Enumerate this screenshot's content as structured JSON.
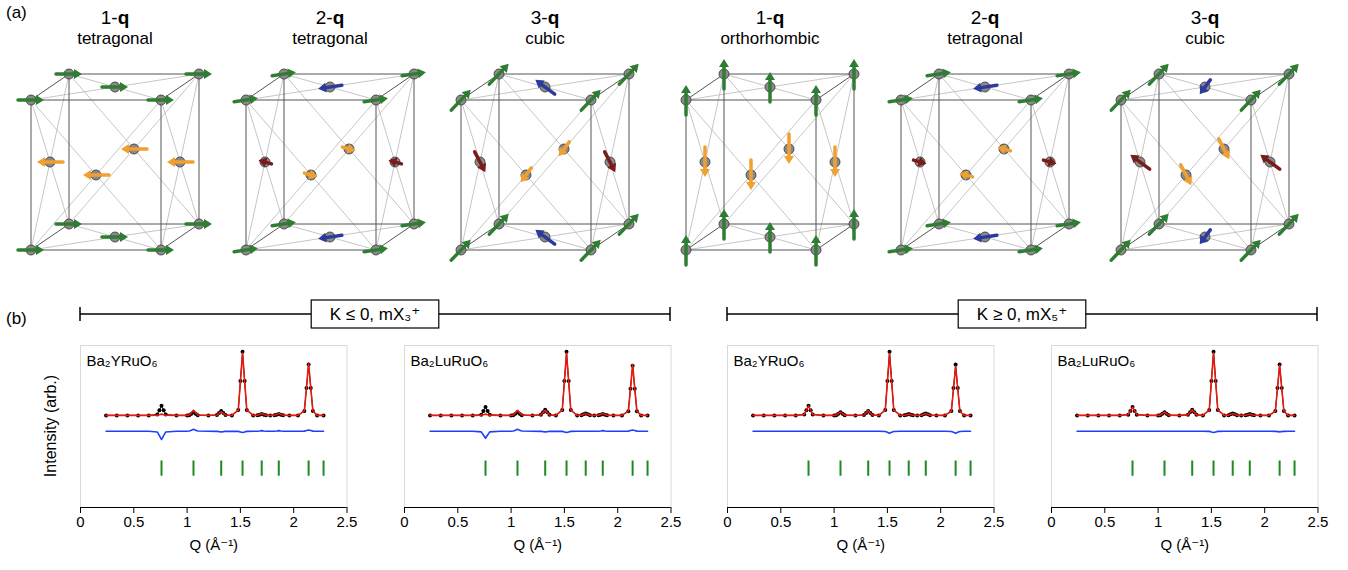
{
  "panel_labels": [
    "(a)",
    "(b)"
  ],
  "structures": [
    {
      "title": "1-q",
      "subtitle": "tetragonal"
    },
    {
      "title": "2-q",
      "subtitle": "tetragonal"
    },
    {
      "title": "3-q",
      "subtitle": "cubic"
    },
    {
      "title": "1-q",
      "subtitle": "orthorhombic"
    },
    {
      "title": "2-q",
      "subtitle": "tetragonal"
    },
    {
      "title": "3-q",
      "subtitle": "cubic"
    }
  ],
  "groups": [
    "K ≤ 0, mX₃⁺",
    "K ≥ 0, mX₅⁺"
  ],
  "chart_data": [
    {
      "type": "line",
      "title": "Ba₂YRuO₆",
      "xlabel": "Q (Å⁻¹)",
      "ylabel": "Intensity (arb.)",
      "xlim": [
        0,
        2.5
      ],
      "xticks": [
        0,
        0.5,
        1,
        1.5,
        2,
        2.5
      ],
      "ylim": [
        -1.45,
        1.1
      ],
      "tick_labels": "x",
      "x": [
        0.24,
        0.34,
        0.44,
        0.54,
        0.64,
        0.72,
        0.74,
        0.76,
        0.78,
        0.8,
        0.9,
        1,
        1.02,
        1.04,
        1.06,
        1.08,
        1.1,
        1.2,
        1.28,
        1.3,
        1.32,
        1.34,
        1.36,
        1.42,
        1.48,
        1.5,
        1.52,
        1.54,
        1.56,
        1.62,
        1.66,
        1.68,
        1.7,
        1.72,
        1.74,
        1.78,
        1.82,
        1.84,
        1.86,
        1.88,
        1.9,
        1.96,
        2.04,
        2.1,
        2.12,
        2.14,
        2.16,
        2.18,
        2.22,
        2.28
      ],
      "series": [
        {
          "type": "line",
          "marker": "circle",
          "color": "#000000",
          "values": [
            0,
            0,
            0,
            0,
            0,
            0.013,
            0.081,
            0.15,
            0.081,
            0.013,
            0,
            0,
            0.004,
            0.027,
            0.05,
            0.027,
            0.004,
            0,
            0.006,
            0.038,
            0.07,
            0.038,
            0.006,
            0,
            0.085,
            0.54,
            1,
            0.54,
            0.085,
            0,
            0.002,
            0.011,
            0.02,
            0.011,
            0.002,
            0,
            0.002,
            0.011,
            0.02,
            0.011,
            0.002,
            0,
            0,
            0.068,
            0.432,
            0.8,
            0.432,
            0.068,
            0,
            0
          ]
        },
        {
          "type": "line",
          "color": "#e8190f",
          "values": [
            0,
            0,
            0,
            0,
            0,
            0.002,
            0.011,
            0.02,
            0.011,
            0.002,
            0,
            0,
            0.007,
            0.043,
            0.08,
            0.043,
            0.007,
            0,
            0.005,
            0.032,
            0.06,
            0.032,
            0.005,
            0,
            0.083,
            0.529,
            0.98,
            0.529,
            0.083,
            0,
            0.003,
            0.016,
            0.03,
            0.016,
            0.003,
            0,
            0.003,
            0.016,
            0.03,
            0.016,
            0.003,
            0,
            0,
            0.07,
            0.443,
            0.82,
            0.443,
            0.07,
            0,
            0
          ]
        },
        {
          "type": "line",
          "color": "#1f3fff",
          "values": [
            -0.25,
            -0.25,
            -0.25,
            -0.25,
            -0.25,
            -0.261,
            -0.32,
            -0.38,
            -0.32,
            -0.261,
            -0.25,
            -0.25,
            -0.247,
            -0.234,
            -0.22,
            -0.234,
            -0.247,
            -0.25,
            -0.251,
            -0.256,
            -0.26,
            -0.256,
            -0.251,
            -0.25,
            -0.252,
            -0.261,
            -0.27,
            -0.261,
            -0.252,
            -0.25,
            -0.249,
            -0.245,
            -0.24,
            -0.245,
            -0.249,
            -0.25,
            -0.249,
            -0.245,
            -0.24,
            -0.245,
            -0.249,
            -0.25,
            -0.25,
            -0.248,
            -0.239,
            -0.23,
            -0.239,
            -0.248,
            -0.25,
            -0.25
          ]
        }
      ],
      "reflections": {
        "color": "#1f8a1f",
        "x": [
          0.76,
          1.06,
          1.32,
          1.52,
          1.7,
          1.86,
          2.14,
          2.28
        ]
      }
    },
    {
      "type": "line",
      "title": "Ba₂LuRuO₆",
      "xlabel": "Q (Å⁻¹)",
      "xlim": [
        0,
        2.5
      ],
      "xticks": [
        0,
        0.5,
        1,
        1.5,
        2,
        2.5
      ],
      "ylim": [
        -1.45,
        1.1
      ],
      "tick_labels": "x",
      "x": [
        0.24,
        0.34,
        0.44,
        0.54,
        0.64,
        0.72,
        0.74,
        0.76,
        0.78,
        0.8,
        0.9,
        1,
        1.02,
        1.04,
        1.06,
        1.08,
        1.1,
        1.2,
        1.28,
        1.3,
        1.32,
        1.34,
        1.36,
        1.42,
        1.48,
        1.5,
        1.52,
        1.54,
        1.56,
        1.62,
        1.66,
        1.68,
        1.7,
        1.72,
        1.74,
        1.78,
        1.82,
        1.84,
        1.86,
        1.88,
        1.9,
        1.96,
        2.04,
        2.1,
        2.12,
        2.14,
        2.16,
        2.18,
        2.22,
        2.28
      ],
      "series": [
        {
          "type": "line",
          "marker": "circle",
          "color": "#000000",
          "values": [
            0,
            0,
            0,
            0,
            0,
            0.011,
            0.07,
            0.13,
            0.07,
            0.011,
            0,
            0,
            0.004,
            0.027,
            0.05,
            0.027,
            0.004,
            0,
            0.008,
            0.049,
            0.09,
            0.049,
            0.008,
            0,
            0.085,
            0.54,
            1,
            0.54,
            0.085,
            0,
            0.003,
            0.016,
            0.03,
            0.016,
            0.003,
            0,
            0.002,
            0.011,
            0.02,
            0.011,
            0.002,
            0,
            0,
            0.066,
            0.421,
            0.78,
            0.421,
            0.066,
            0,
            0
          ]
        },
        {
          "type": "line",
          "color": "#e8190f",
          "values": [
            0,
            0,
            0,
            0,
            0,
            0.002,
            0.011,
            0.02,
            0.011,
            0.002,
            0,
            0,
            0.007,
            0.043,
            0.08,
            0.043,
            0.007,
            0,
            0.007,
            0.043,
            0.08,
            0.043,
            0.007,
            0,
            0.083,
            0.529,
            0.98,
            0.529,
            0.083,
            0,
            0.003,
            0.016,
            0.03,
            0.016,
            0.003,
            0,
            0.003,
            0.016,
            0.03,
            0.016,
            0.003,
            0,
            0,
            0.068,
            0.432,
            0.8,
            0.432,
            0.068,
            0,
            0
          ]
        },
        {
          "type": "line",
          "color": "#1f3fff",
          "values": [
            -0.25,
            -0.25,
            -0.25,
            -0.25,
            -0.25,
            -0.259,
            -0.309,
            -0.36,
            -0.309,
            -0.259,
            -0.25,
            -0.25,
            -0.247,
            -0.234,
            -0.22,
            -0.234,
            -0.247,
            -0.25,
            -0.251,
            -0.256,
            -0.26,
            -0.256,
            -0.251,
            -0.25,
            -0.252,
            -0.261,
            -0.27,
            -0.261,
            -0.252,
            -0.25,
            -0.25,
            -0.25,
            -0.25,
            -0.25,
            -0.25,
            -0.25,
            -0.249,
            -0.245,
            -0.24,
            -0.245,
            -0.249,
            -0.25,
            -0.25,
            -0.248,
            -0.239,
            -0.23,
            -0.239,
            -0.248,
            -0.25,
            -0.25
          ]
        }
      ],
      "reflections": {
        "color": "#1f8a1f",
        "x": [
          0.76,
          1.06,
          1.32,
          1.52,
          1.7,
          1.86,
          2.14,
          2.28
        ]
      }
    },
    {
      "type": "line",
      "title": "Ba₂YRuO₆",
      "xlabel": "Q (Å⁻¹)",
      "xlim": [
        0,
        2.5
      ],
      "xticks": [
        0,
        0.5,
        1,
        1.5,
        2,
        2.5
      ],
      "ylim": [
        -1.45,
        1.1
      ],
      "tick_labels": "x",
      "x": [
        0.24,
        0.34,
        0.44,
        0.54,
        0.64,
        0.72,
        0.74,
        0.76,
        0.78,
        0.8,
        0.9,
        1,
        1.02,
        1.04,
        1.06,
        1.08,
        1.1,
        1.2,
        1.28,
        1.3,
        1.32,
        1.34,
        1.36,
        1.42,
        1.48,
        1.5,
        1.52,
        1.54,
        1.56,
        1.62,
        1.66,
        1.68,
        1.7,
        1.72,
        1.74,
        1.78,
        1.82,
        1.84,
        1.86,
        1.88,
        1.9,
        1.96,
        2.04,
        2.1,
        2.12,
        2.14,
        2.16,
        2.18,
        2.22,
        2.28
      ],
      "series": [
        {
          "type": "line",
          "marker": "circle",
          "color": "#000000",
          "values": [
            0,
            0,
            0,
            0,
            0,
            0.013,
            0.081,
            0.15,
            0.081,
            0.013,
            0,
            0,
            0.004,
            0.027,
            0.05,
            0.027,
            0.004,
            0,
            0.006,
            0.038,
            0.07,
            0.038,
            0.006,
            0,
            0.085,
            0.54,
            1,
            0.54,
            0.085,
            0,
            0.002,
            0.011,
            0.02,
            0.011,
            0.002,
            0,
            0.003,
            0.016,
            0.03,
            0.016,
            0.003,
            0,
            0,
            0.068,
            0.432,
            0.8,
            0.432,
            0.068,
            0,
            0
          ]
        },
        {
          "type": "line",
          "color": "#e8190f",
          "values": [
            0,
            0,
            0,
            0,
            0,
            0.013,
            0.081,
            0.15,
            0.081,
            0.013,
            0,
            0,
            0.004,
            0.027,
            0.05,
            0.027,
            0.004,
            0,
            0.006,
            0.038,
            0.07,
            0.038,
            0.006,
            0,
            0.082,
            0.524,
            0.97,
            0.524,
            0.082,
            0,
            0.002,
            0.011,
            0.02,
            0.011,
            0.002,
            0,
            0.003,
            0.016,
            0.03,
            0.016,
            0.003,
            0,
            0,
            0.065,
            0.416,
            0.77,
            0.416,
            0.065,
            0,
            0
          ]
        },
        {
          "type": "line",
          "color": "#1f3fff",
          "values": [
            -0.25,
            -0.25,
            -0.25,
            -0.25,
            -0.25,
            -0.25,
            -0.25,
            -0.25,
            -0.25,
            -0.25,
            -0.25,
            -0.25,
            -0.25,
            -0.25,
            -0.25,
            -0.25,
            -0.25,
            -0.25,
            -0.25,
            -0.25,
            -0.25,
            -0.25,
            -0.25,
            -0.25,
            -0.253,
            -0.266,
            -0.28,
            -0.266,
            -0.253,
            -0.25,
            -0.25,
            -0.25,
            -0.25,
            -0.25,
            -0.25,
            -0.25,
            -0.25,
            -0.25,
            -0.25,
            -0.25,
            -0.25,
            -0.25,
            -0.25,
            -0.253,
            -0.266,
            -0.28,
            -0.266,
            -0.253,
            -0.25,
            -0.25
          ]
        }
      ],
      "reflections": {
        "color": "#1f8a1f",
        "x": [
          0.76,
          1.06,
          1.32,
          1.52,
          1.7,
          1.86,
          2.14,
          2.28
        ]
      }
    },
    {
      "type": "line",
      "title": "Ba₂LuRuO₆",
      "xlabel": "Q (Å⁻¹)",
      "xlim": [
        0,
        2.5
      ],
      "xticks": [
        0,
        0.5,
        1,
        1.5,
        2,
        2.5
      ],
      "ylim": [
        -1.45,
        1.1
      ],
      "tick_labels": "x",
      "x": [
        0.24,
        0.34,
        0.44,
        0.54,
        0.64,
        0.72,
        0.74,
        0.76,
        0.78,
        0.8,
        0.9,
        1,
        1.02,
        1.04,
        1.06,
        1.08,
        1.1,
        1.2,
        1.28,
        1.3,
        1.32,
        1.34,
        1.36,
        1.42,
        1.48,
        1.5,
        1.52,
        1.54,
        1.56,
        1.62,
        1.66,
        1.68,
        1.7,
        1.72,
        1.74,
        1.78,
        1.82,
        1.84,
        1.86,
        1.88,
        1.9,
        1.96,
        2.04,
        2.1,
        2.12,
        2.14,
        2.16,
        2.18,
        2.22,
        2.28
      ],
      "series": [
        {
          "type": "line",
          "marker": "circle",
          "color": "#000000",
          "values": [
            0,
            0,
            0,
            0,
            0,
            0.011,
            0.07,
            0.13,
            0.07,
            0.011,
            0,
            0,
            0.004,
            0.027,
            0.05,
            0.027,
            0.004,
            0,
            0.008,
            0.049,
            0.09,
            0.049,
            0.008,
            0,
            0.085,
            0.54,
            1,
            0.54,
            0.085,
            0,
            0.003,
            0.016,
            0.03,
            0.016,
            0.003,
            0,
            0.002,
            0.011,
            0.02,
            0.011,
            0.002,
            0,
            0,
            0.068,
            0.432,
            0.8,
            0.432,
            0.068,
            0,
            0
          ]
        },
        {
          "type": "line",
          "color": "#e8190f",
          "values": [
            0,
            0,
            0,
            0,
            0,
            0.011,
            0.07,
            0.13,
            0.07,
            0.011,
            0,
            0,
            0.004,
            0.027,
            0.05,
            0.027,
            0.004,
            0,
            0.008,
            0.049,
            0.09,
            0.049,
            0.008,
            0,
            0.083,
            0.529,
            0.98,
            0.529,
            0.083,
            0,
            0.003,
            0.016,
            0.03,
            0.016,
            0.003,
            0,
            0.002,
            0.011,
            0.02,
            0.011,
            0.002,
            0,
            0,
            0.067,
            0.427,
            0.79,
            0.427,
            0.067,
            0,
            0
          ]
        },
        {
          "type": "line",
          "color": "#1f3fff",
          "values": [
            -0.25,
            -0.25,
            -0.25,
            -0.25,
            -0.25,
            -0.25,
            -0.25,
            -0.25,
            -0.25,
            -0.25,
            -0.25,
            -0.25,
            -0.25,
            -0.25,
            -0.25,
            -0.25,
            -0.25,
            -0.25,
            -0.25,
            -0.25,
            -0.25,
            -0.25,
            -0.25,
            -0.25,
            -0.252,
            -0.261,
            -0.27,
            -0.261,
            -0.252,
            -0.25,
            -0.25,
            -0.25,
            -0.25,
            -0.25,
            -0.25,
            -0.25,
            -0.25,
            -0.25,
            -0.25,
            -0.25,
            -0.25,
            -0.25,
            -0.25,
            -0.251,
            -0.255,
            -0.26,
            -0.255,
            -0.251,
            -0.25,
            -0.25
          ]
        }
      ],
      "reflections": {
        "color": "#1f8a1f",
        "x": [
          0.76,
          1.06,
          1.32,
          1.52,
          1.7,
          1.86,
          2.14,
          2.28
        ]
      }
    }
  ]
}
